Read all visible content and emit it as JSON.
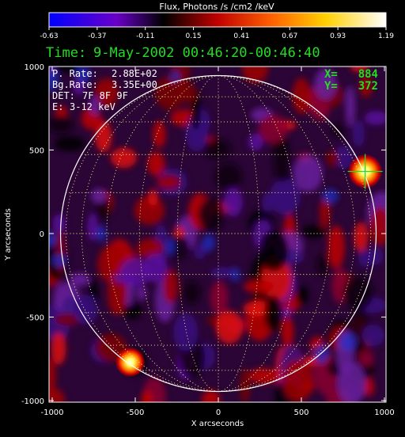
{
  "chart_data": {
    "type": "heatmap",
    "title": "",
    "colorbar": {
      "label": "Flux, Photons /s /cm2 /keV",
      "range": [
        -0.63,
        1.19
      ],
      "ticks": [
        "-0.63",
        "-0.37",
        "-0.11",
        "0.15",
        "0.41",
        "0.67",
        "0.93",
        "1.19"
      ],
      "stops": [
        "#0000ff",
        "#6a00c8",
        "#000000",
        "#c00000",
        "#ff6000",
        "#ffd000",
        "#ffffff"
      ]
    },
    "time_label": "Time:",
    "time_range": "9-May-2002 00:46:20-00:46:40",
    "info": [
      {
        "key": "P. Rate:",
        "value": "2.88E+02"
      },
      {
        "key": "Bg.Rate:",
        "value": "3.35E+00"
      },
      {
        "key": "DET:",
        "value": "7F 8F 9F"
      },
      {
        "key": "E:",
        "value": "3-12 keV"
      }
    ],
    "cursor": {
      "x_label": "X=",
      "x": "884",
      "y_label": "Y=",
      "y": "372",
      "color": "#22dd22",
      "x_value": 884,
      "y_value": 372
    },
    "xlabel": "X arcseconds",
    "ylabel": "Y arcseconds",
    "xlim": [
      -1000,
      1000
    ],
    "ylim": [
      -1000,
      1000
    ],
    "xticks": [
      "-1000",
      "-500",
      "0",
      "500",
      "1000"
    ],
    "yticks": [
      "1000",
      "500",
      "0",
      "-500",
      "-1000"
    ],
    "tick_values": [
      -1000,
      -500,
      0,
      500,
      1000
    ],
    "solar_radius": 950,
    "sources": [
      {
        "x": 884,
        "y": 372,
        "flux": 1.19
      },
      {
        "x": -530,
        "y": -770,
        "flux": 0.9
      }
    ]
  }
}
